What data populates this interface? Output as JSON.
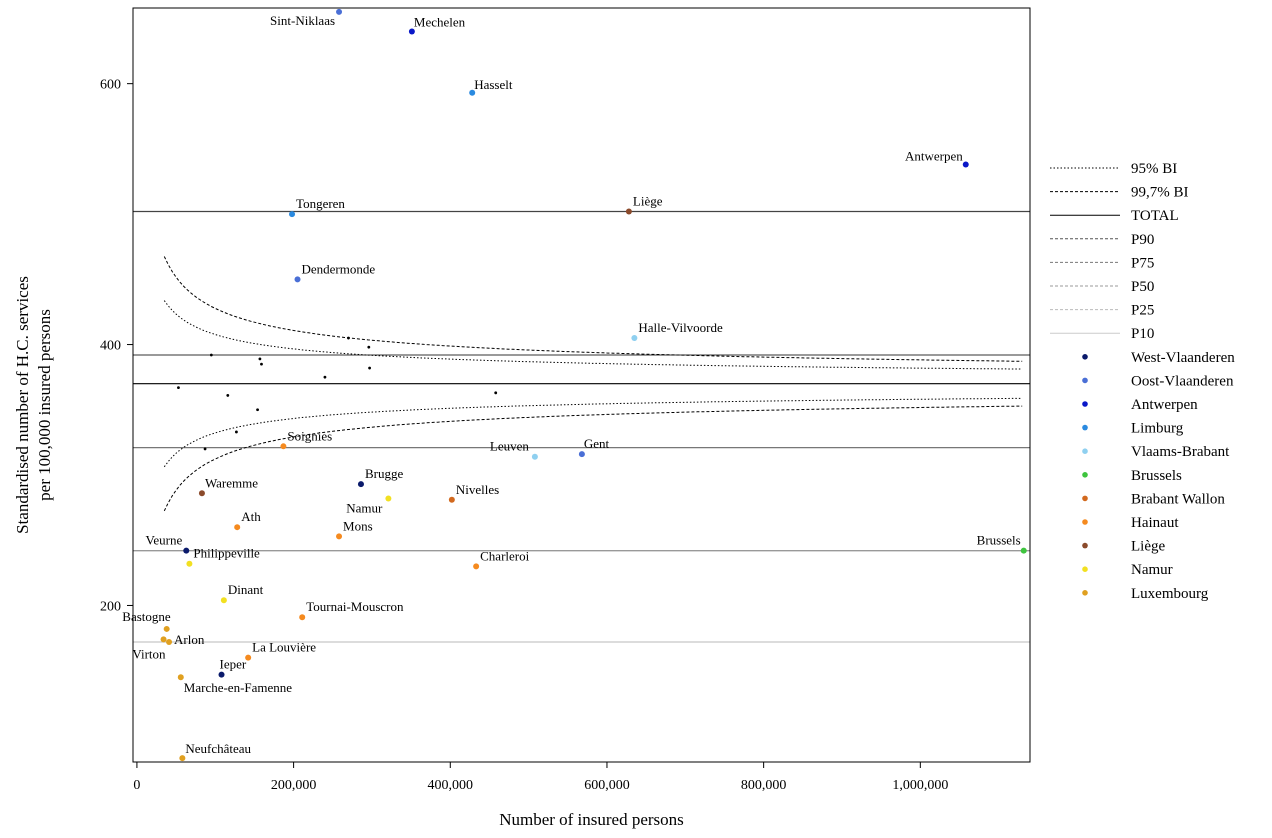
{
  "chart_data": {
    "type": "scatter",
    "title": "",
    "xlabel": "Number of insured persons",
    "ylabel_lines": [
      "Standardised number of H.C. services",
      "per 100,000 insured persons"
    ],
    "xlim": [
      -5000,
      1140000
    ],
    "ylim": [
      80,
      658
    ],
    "xticks": [
      0,
      200000,
      400000,
      600000,
      800000,
      1000000
    ],
    "xtick_labels": [
      "0",
      "200,000",
      "400,000",
      "600,000",
      "800,000",
      "1,000,000"
    ],
    "yticks": [
      200,
      400,
      600
    ],
    "ytick_labels": [
      "200",
      "400",
      "600"
    ],
    "grid": false,
    "legend_position": "right",
    "reference_lines": {
      "TOTAL": 370,
      "P90": 502,
      "P75": 392,
      "P50": 321,
      "P25": 242,
      "P10": 172
    },
    "legend": [
      {
        "label": "95% BI",
        "style": "dotted",
        "color": "#000000"
      },
      {
        "label": "99,7% BI",
        "style": "dashed",
        "color": "#000000"
      },
      {
        "label": "TOTAL",
        "style": "solid",
        "color": "#000000"
      },
      {
        "label": "P90",
        "style": "dashed",
        "color": "#555555"
      },
      {
        "label": "P75",
        "style": "dashed",
        "color": "#777777"
      },
      {
        "label": "P50",
        "style": "dashed",
        "color": "#999999"
      },
      {
        "label": "P25",
        "style": "dashed",
        "color": "#bbbbbb"
      },
      {
        "label": "P10",
        "style": "solid",
        "color": "#cccccc"
      },
      {
        "label": "West-Vlaanderen",
        "style": "point",
        "color": "#0a1a6b"
      },
      {
        "label": "Oost-Vlaanderen",
        "style": "point",
        "color": "#4a6fd6"
      },
      {
        "label": "Antwerpen",
        "style": "point",
        "color": "#0a18c8"
      },
      {
        "label": "Limburg",
        "style": "point",
        "color": "#2a8ae0"
      },
      {
        "label": "Vlaams-Brabant",
        "style": "point",
        "color": "#8fd0f0"
      },
      {
        "label": "Brussels",
        "style": "point",
        "color": "#3ec43e"
      },
      {
        "label": "Brabant Wallon",
        "style": "point",
        "color": "#d2691e"
      },
      {
        "label": "Hainaut",
        "style": "point",
        "color": "#f58a1f"
      },
      {
        "label": "Liège",
        "style": "point",
        "color": "#8b4a2b"
      },
      {
        "label": "Namur",
        "style": "point",
        "color": "#f2e021"
      },
      {
        "label": "Luxembourg",
        "style": "point",
        "color": "#e0a020"
      }
    ],
    "points": [
      {
        "name": "Sint-Niklaas",
        "province": "Oost-Vlaanderen",
        "x": 258000,
        "y": 655,
        "anchor": "end",
        "dx": -4,
        "dy": 13
      },
      {
        "name": "Mechelen",
        "province": "Antwerpen",
        "x": 351000,
        "y": 640,
        "anchor": "start",
        "dx": 2,
        "dy": -5
      },
      {
        "name": "Hasselt",
        "province": "Limburg",
        "x": 428000,
        "y": 593,
        "anchor": "start",
        "dx": 2,
        "dy": -4
      },
      {
        "name": "Antwerpen",
        "province": "Antwerpen",
        "x": 1058000,
        "y": 538,
        "anchor": "end",
        "dx": -3,
        "dy": -4
      },
      {
        "name": "Tongeren",
        "province": "Limburg",
        "x": 198000,
        "y": 500,
        "anchor": "start",
        "dx": 4,
        "dy": -6
      },
      {
        "name": "Liège",
        "province": "Liège",
        "x": 628000,
        "y": 502,
        "anchor": "start",
        "dx": 4,
        "dy": -6
      },
      {
        "name": "Dendermonde",
        "province": "Oost-Vlaanderen",
        "x": 205000,
        "y": 450,
        "anchor": "start",
        "dx": 4,
        "dy": -6
      },
      {
        "name": "Halle-Vilvoorde",
        "province": "Vlaams-Brabant",
        "x": 635000,
        "y": 405,
        "anchor": "start",
        "dx": 4,
        "dy": -6
      },
      {
        "name": "Soignies",
        "province": "Hainaut",
        "x": 187000,
        "y": 322,
        "anchor": "start",
        "dx": 4,
        "dy": -6
      },
      {
        "name": "Leuven",
        "province": "Vlaams-Brabant",
        "x": 508000,
        "y": 314,
        "anchor": "end",
        "dx": -6,
        "dy": -6
      },
      {
        "name": "Gent",
        "province": "Oost-Vlaanderen",
        "x": 568000,
        "y": 316,
        "anchor": "start",
        "dx": 2,
        "dy": -6
      },
      {
        "name": "Brugge",
        "province": "West-Vlaanderen",
        "x": 286000,
        "y": 293,
        "anchor": "start",
        "dx": 4,
        "dy": -6
      },
      {
        "name": "Waremme",
        "province": "Liège",
        "x": 83000,
        "y": 286,
        "anchor": "start",
        "dx": 3,
        "dy": -6
      },
      {
        "name": "Nivelles",
        "province": "Brabant Wallon",
        "x": 402000,
        "y": 281,
        "anchor": "start",
        "dx": 4,
        "dy": -6
      },
      {
        "name": "Namur",
        "province": "Namur",
        "x": 321000,
        "y": 282,
        "anchor": "end",
        "dx": -6,
        "dy": 14
      },
      {
        "name": "Ath",
        "province": "Hainaut",
        "x": 128000,
        "y": 260,
        "anchor": "start",
        "dx": 4,
        "dy": -6
      },
      {
        "name": "Mons",
        "province": "Hainaut",
        "x": 258000,
        "y": 253,
        "anchor": "start",
        "dx": 4,
        "dy": -6
      },
      {
        "name": "Veurne",
        "province": "West-Vlaanderen",
        "x": 63000,
        "y": 242,
        "anchor": "end",
        "dx": -4,
        "dy": -6
      },
      {
        "name": "Philippeville",
        "province": "Namur",
        "x": 67000,
        "y": 232,
        "anchor": "start",
        "dx": 4,
        "dy": -6
      },
      {
        "name": "Charleroi",
        "province": "Hainaut",
        "x": 433000,
        "y": 230,
        "anchor": "start",
        "dx": 4,
        "dy": -6
      },
      {
        "name": "Brussels",
        "province": "Brussels",
        "x": 1132000,
        "y": 242,
        "anchor": "end",
        "dx": -3,
        "dy": -6
      },
      {
        "name": "Dinant",
        "province": "Namur",
        "x": 111000,
        "y": 204,
        "anchor": "start",
        "dx": 4,
        "dy": -6
      },
      {
        "name": "Tournai-Mouscron",
        "province": "Hainaut",
        "x": 211000,
        "y": 191,
        "anchor": "start",
        "dx": 4,
        "dy": -6
      },
      {
        "name": "Bastogne",
        "province": "Luxembourg",
        "x": 38000,
        "y": 182,
        "anchor": "end",
        "dx": 4,
        "dy": -8
      },
      {
        "name": "Arlon",
        "province": "Luxembourg",
        "x": 41000,
        "y": 172,
        "anchor": "start",
        "dx": 5,
        "dy": 2
      },
      {
        "name": "Virton",
        "province": "Luxembourg",
        "x": 34000,
        "y": 174,
        "anchor": "end",
        "dx": 2,
        "dy": 19
      },
      {
        "name": "La Louvière",
        "province": "Hainaut",
        "x": 142000,
        "y": 160,
        "anchor": "start",
        "dx": 4,
        "dy": -6
      },
      {
        "name": "Ieper",
        "province": "West-Vlaanderen",
        "x": 108000,
        "y": 147,
        "anchor": "start",
        "dx": -2,
        "dy": -6
      },
      {
        "name": "Marche-en-Famenne",
        "province": "Luxembourg",
        "x": 56000,
        "y": 145,
        "anchor": "start",
        "dx": 3,
        "dy": 15
      },
      {
        "name": "Neufchâteau",
        "province": "Luxembourg",
        "x": 58000,
        "y": 83,
        "anchor": "start",
        "dx": 3,
        "dy": -5
      }
    ],
    "unlabeled_points": [
      {
        "x": 53000,
        "y": 367
      },
      {
        "x": 95000,
        "y": 392
      },
      {
        "x": 116000,
        "y": 361
      },
      {
        "x": 154000,
        "y": 350
      },
      {
        "x": 157000,
        "y": 389
      },
      {
        "x": 159000,
        "y": 385
      },
      {
        "x": 87000,
        "y": 320
      },
      {
        "x": 127000,
        "y": 333
      },
      {
        "x": 240000,
        "y": 375
      },
      {
        "x": 270000,
        "y": 405
      },
      {
        "x": 296000,
        "y": 398
      },
      {
        "x": 297000,
        "y": 382
      },
      {
        "x": 458000,
        "y": 363
      }
    ]
  }
}
